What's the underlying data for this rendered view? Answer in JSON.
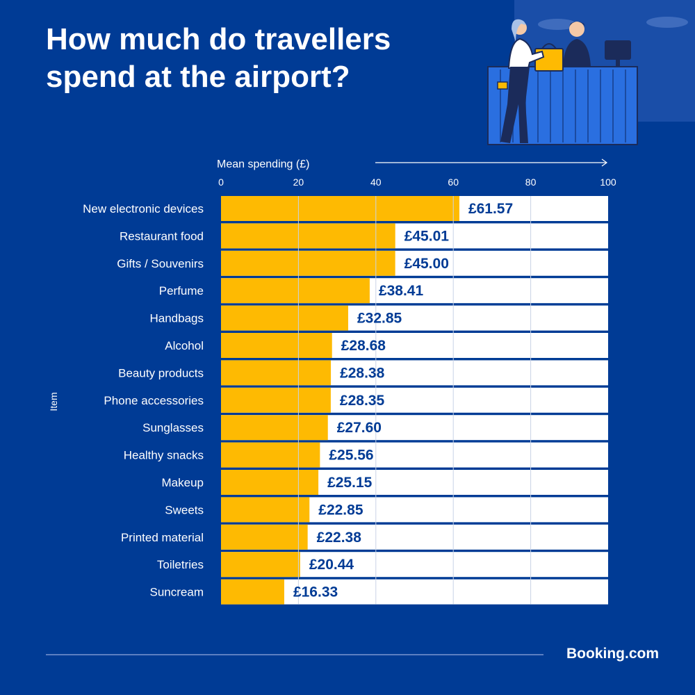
{
  "title": "How much do travellers spend at the airport?",
  "brand": "Booking.com",
  "colors": {
    "background": "#003b95",
    "bar": "#feba02",
    "track": "#ffffff",
    "value_label": "#003b95",
    "text": "#ffffff"
  },
  "chart_data": {
    "type": "bar",
    "orientation": "horizontal",
    "xlabel": "Mean spending (£)",
    "ylabel": "Item",
    "xlim": [
      0,
      100
    ],
    "xticks": [
      0,
      20,
      40,
      60,
      80,
      100
    ],
    "categories": [
      "New electronic devices",
      "Restaurant food",
      "Gifts / Souvenirs",
      "Perfume",
      "Handbags",
      "Alcohol",
      "Beauty products",
      "Phone accessories",
      "Sunglasses",
      "Healthy snacks",
      "Makeup",
      "Sweets",
      "Printed material",
      "Toiletries",
      "Suncream"
    ],
    "values": [
      61.57,
      45.01,
      45.0,
      38.41,
      32.85,
      28.68,
      28.38,
      28.35,
      27.6,
      25.56,
      25.15,
      22.85,
      22.38,
      20.44,
      16.33
    ],
    "value_labels": [
      "£61.57",
      "£45.01",
      "£45.00",
      "£38.41",
      "£32.85",
      "£28.68",
      "£28.38",
      "£28.35",
      "£27.60",
      "£25.56",
      "£25.15",
      "£22.85",
      "£22.38",
      "£20.44",
      "£16.33"
    ],
    "grid": true
  }
}
